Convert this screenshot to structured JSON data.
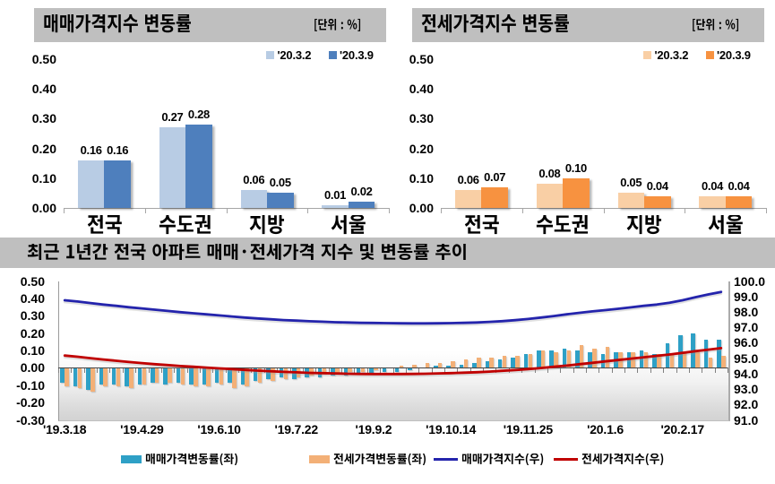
{
  "colors": {
    "title_bar_bg": "#BFBFBF",
    "sale_light": "#B8CCE4",
    "sale_dark": "#4E7FBD",
    "jeonse_light": "#F9CFA5",
    "jeonse_dark": "#F79240",
    "trend_sale_bar": "#2EA0C6",
    "trend_jeonse_bar": "#F3B077",
    "trend_sale_line": "#2424AC",
    "trend_jeonse_line": "#C00000",
    "axis_grey": "#A6A6A6",
    "text": "#000000"
  },
  "chart_data": [
    {
      "id": "sale_change",
      "type": "bar",
      "title": "매매가격지수 변동률",
      "unit_label": "[단위 : %]",
      "categories": [
        "전국",
        "수도권",
        "지방",
        "서울"
      ],
      "series": [
        {
          "name": "'20.3.2",
          "values": [
            0.16,
            0.27,
            0.06,
            0.01
          ]
        },
        {
          "name": "'20.3.9",
          "values": [
            0.16,
            0.28,
            0.05,
            0.02
          ]
        }
      ],
      "ylim": [
        0.0,
        0.5
      ],
      "yticks": [
        "0.50",
        "0.40",
        "0.30",
        "0.20",
        "0.10",
        "0.00"
      ],
      "grid": false,
      "legend_position": "top-right"
    },
    {
      "id": "jeonse_change",
      "type": "bar",
      "title": "전세가격지수 변동률",
      "unit_label": "[단위 : %]",
      "categories": [
        "전국",
        "수도권",
        "지방",
        "서울"
      ],
      "series": [
        {
          "name": "'20.3.2",
          "values": [
            0.06,
            0.08,
            0.05,
            0.04
          ]
        },
        {
          "name": "'20.3.9",
          "values": [
            0.07,
            0.1,
            0.04,
            0.04
          ]
        }
      ],
      "ylim": [
        0.0,
        0.5
      ],
      "yticks": [
        "0.50",
        "0.40",
        "0.30",
        "0.20",
        "0.10",
        "0.00"
      ],
      "grid": false,
      "legend_position": "top-right"
    },
    {
      "id": "trend",
      "type": "combo",
      "title": "최근 1년간 전국 아파트 매매·전세가격 지수 및 변동률 추이",
      "weeks": 52,
      "x_tick_labels": [
        "'19.3.18",
        "'19.4.29",
        "'19.6.10",
        "'19.7.22",
        "'19.9.2",
        "'19.10.14",
        "'19.11.25",
        "'20.1.6",
        "'20.2.17"
      ],
      "x_tick_label_week_index": [
        0,
        6,
        12,
        18,
        24,
        30,
        36,
        42,
        48
      ],
      "bar_series": [
        {
          "name": "매매가격변동률(좌)",
          "axis": "left",
          "values": [
            -0.08,
            -0.1,
            -0.12,
            -0.09,
            -0.09,
            -0.1,
            -0.09,
            -0.08,
            -0.09,
            -0.08,
            -0.09,
            -0.09,
            -0.08,
            -0.08,
            -0.09,
            -0.07,
            -0.06,
            -0.05,
            -0.06,
            -0.05,
            -0.05,
            -0.04,
            -0.04,
            -0.03,
            -0.03,
            -0.02,
            -0.02,
            -0.01,
            0.0,
            0.01,
            0.01,
            0.02,
            0.03,
            0.04,
            0.05,
            0.06,
            0.08,
            0.1,
            0.1,
            0.11,
            0.1,
            0.09,
            0.08,
            0.09,
            0.09,
            0.1,
            0.08,
            0.14,
            0.19,
            0.2,
            0.16,
            0.16
          ]
        },
        {
          "name": "전세가격변동률(좌)",
          "axis": "left",
          "values": [
            -0.1,
            -0.11,
            -0.13,
            -0.1,
            -0.1,
            -0.11,
            -0.09,
            -0.08,
            -0.08,
            -0.09,
            -0.1,
            -0.1,
            -0.09,
            -0.11,
            -0.1,
            -0.08,
            -0.07,
            -0.06,
            -0.05,
            -0.04,
            -0.03,
            -0.03,
            -0.02,
            -0.02,
            -0.01,
            0.0,
            0.01,
            0.02,
            0.03,
            0.03,
            0.04,
            0.05,
            0.06,
            0.06,
            0.07,
            0.07,
            0.08,
            0.1,
            0.09,
            0.1,
            0.13,
            0.11,
            0.12,
            0.09,
            0.09,
            0.09,
            0.08,
            0.08,
            0.09,
            0.09,
            0.06,
            0.07
          ]
        }
      ],
      "line_series": [
        {
          "name": "매매가격지수(우)",
          "axis": "right",
          "values": [
            98.78,
            98.7,
            98.6,
            98.5,
            98.42,
            98.33,
            98.25,
            98.17,
            98.09,
            98.01,
            97.94,
            97.87,
            97.8,
            97.73,
            97.66,
            97.6,
            97.55,
            97.5,
            97.46,
            97.42,
            97.39,
            97.36,
            97.34,
            97.32,
            97.31,
            97.3,
            97.29,
            97.28,
            97.28,
            97.29,
            97.3,
            97.32,
            97.34,
            97.38,
            97.43,
            97.49,
            97.57,
            97.66,
            97.76,
            97.87,
            97.97,
            98.06,
            98.14,
            98.23,
            98.32,
            98.42,
            98.5,
            98.62,
            98.78,
            98.98,
            99.16,
            99.32
          ]
        },
        {
          "name": "전세가격지수(우)",
          "axis": "right",
          "values": [
            95.2,
            95.12,
            95.03,
            94.94,
            94.86,
            94.78,
            94.71,
            94.64,
            94.58,
            94.52,
            94.47,
            94.42,
            94.37,
            94.32,
            94.27,
            94.22,
            94.18,
            94.14,
            94.11,
            94.08,
            94.06,
            94.04,
            94.02,
            94.01,
            94.0,
            94.0,
            94.0,
            94.01,
            94.02,
            94.04,
            94.06,
            94.09,
            94.12,
            94.16,
            94.21,
            94.26,
            94.32,
            94.39,
            94.47,
            94.55,
            94.64,
            94.73,
            94.82,
            94.91,
            95.0,
            95.09,
            95.18,
            95.27,
            95.37,
            95.48,
            95.58,
            95.68
          ]
        }
      ],
      "left_ylim": [
        -0.3,
        0.5
      ],
      "left_yticks": [
        "0.50",
        "0.40",
        "0.30",
        "0.20",
        "0.10",
        "0.00",
        "-0.10",
        "-0.20",
        "-0.30"
      ],
      "right_ylim": [
        91.0,
        100.0
      ],
      "right_yticks": [
        "100.0",
        "99.0",
        "98.0",
        "97.0",
        "96.0",
        "95.0",
        "94.0",
        "93.0",
        "92.0",
        "91.0"
      ],
      "grid": false,
      "legend_position": "bottom"
    }
  ]
}
